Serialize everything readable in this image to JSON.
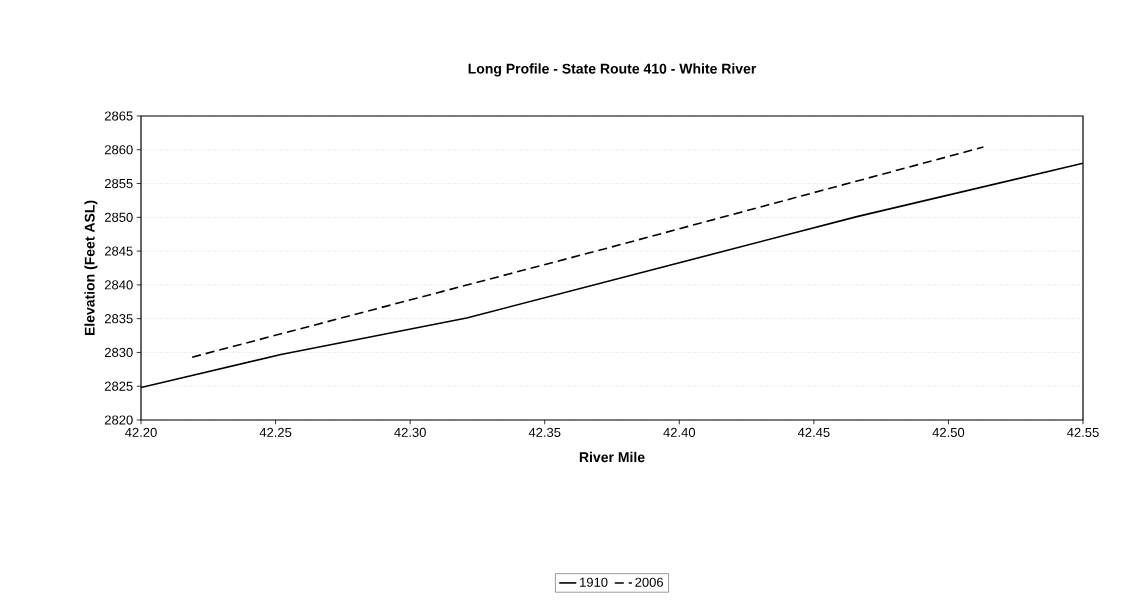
{
  "chart_data": {
    "type": "line",
    "title": "Long Profile - State Route 410 - White River",
    "xlabel": "River Mile",
    "ylabel": "Elevation (Feet ASL)",
    "series": [
      {
        "name": "1910",
        "color": "#000000",
        "line_style": "solid",
        "x": [
          42.2,
          42.252,
          42.321,
          42.466,
          42.55
        ],
        "values": [
          2824.8,
          2829.7,
          2835.1,
          2850.1,
          2858
        ]
      },
      {
        "name": "2006",
        "color": "#000000",
        "line_style": "dashed",
        "x": [
          42.219,
          42.371,
          42.513
        ],
        "values": [
          2829.3,
          2845.2,
          2860.4
        ]
      }
    ],
    "xlim": [
      42.2,
      42.55
    ],
    "xticks": [
      {
        "value": 42.2,
        "label": "42.20"
      },
      {
        "value": 42.25,
        "label": "42.25"
      },
      {
        "value": 42.3,
        "label": "42.30"
      },
      {
        "value": 42.35,
        "label": "42.35"
      },
      {
        "value": 42.4,
        "label": "42.40"
      },
      {
        "value": 42.45,
        "label": "42.45"
      },
      {
        "value": 42.5,
        "label": "42.50"
      },
      {
        "value": 42.55,
        "label": "42.55"
      }
    ],
    "ylim": [
      2820,
      2865
    ],
    "yticks": [
      2820,
      2825,
      2830,
      2835,
      2840,
      2845,
      2850,
      2855,
      2860,
      2865
    ],
    "grid": "y",
    "legend": "bottom"
  }
}
